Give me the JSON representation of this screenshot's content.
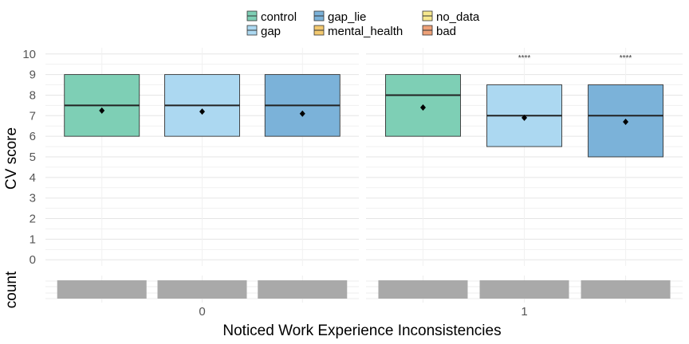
{
  "chart_data": {
    "type": "boxplot",
    "legend": {
      "position": "top",
      "entries": [
        {
          "label": "control",
          "color": "#7ecfb5"
        },
        {
          "label": "gap",
          "color": "#acd8f1"
        },
        {
          "label": "gap_lie",
          "color": "#7bb2d9"
        },
        {
          "label": "mental_health",
          "color": "#f3c96f"
        },
        {
          "label": "no_data",
          "color": "#f6e88f"
        },
        {
          "label": "bad",
          "color": "#eea178"
        }
      ]
    },
    "ylabel": "CV score",
    "xlabel": "Noticed Work Experience Inconsistencies",
    "count_label": "count",
    "yticks": [
      0,
      1,
      2,
      3,
      4,
      5,
      6,
      7,
      8,
      9,
      10
    ],
    "ylim": [
      -0.3,
      10.3
    ],
    "grid": true,
    "panels": [
      {
        "facet_label": "0",
        "boxes": [
          {
            "group": "control",
            "q1": 6,
            "median": 7.5,
            "q3": 9,
            "mean": 7.25,
            "sig": ""
          },
          {
            "group": "gap",
            "q1": 6,
            "median": 7.5,
            "q3": 9,
            "mean": 7.2,
            "sig": ""
          },
          {
            "group": "gap_lie",
            "q1": 6,
            "median": 7.5,
            "q3": 9,
            "mean": 7.1,
            "sig": ""
          }
        ]
      },
      {
        "facet_label": "1",
        "boxes": [
          {
            "group": "control",
            "q1": 6,
            "median": 8,
            "q3": 9,
            "mean": 7.4,
            "sig": ""
          },
          {
            "group": "gap",
            "q1": 5.5,
            "median": 7,
            "q3": 8.5,
            "mean": 6.9,
            "sig": "****"
          },
          {
            "group": "gap_lie",
            "q1": 5,
            "median": 7,
            "q3": 8.5,
            "mean": 6.7,
            "sig": "****"
          }
        ]
      }
    ],
    "count_bar_color": "#a9a9a9"
  }
}
